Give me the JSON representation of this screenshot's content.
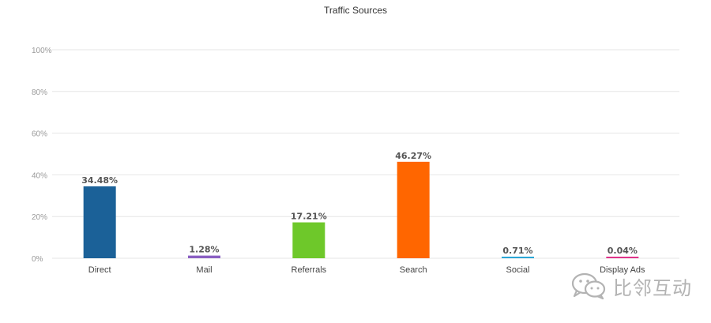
{
  "chart_data": {
    "type": "bar",
    "title": "Traffic Sources",
    "categories": [
      "Direct",
      "Mail",
      "Referrals",
      "Search",
      "Social",
      "Display Ads"
    ],
    "values": [
      34.48,
      1.28,
      17.21,
      46.27,
      0.71,
      0.04
    ],
    "data_labels": [
      "34.48%",
      "1.28%",
      "17.21%",
      "46.27%",
      "0.71%",
      "0.04%"
    ],
    "colors": [
      "#1b6198",
      "#8a5fc2",
      "#6ec82a",
      "#ff6600",
      "#2aa6d6",
      "#e0338a"
    ],
    "ylim": [
      0,
      100
    ],
    "yticks": [
      0,
      20,
      40,
      60,
      80,
      100
    ],
    "ytick_labels": [
      "0%",
      "20%",
      "40%",
      "60%",
      "80%",
      "100%"
    ],
    "grid": true,
    "xlabel": "",
    "ylabel": ""
  },
  "watermark": {
    "text": "比邻互动",
    "icon": "wechat-icon"
  }
}
